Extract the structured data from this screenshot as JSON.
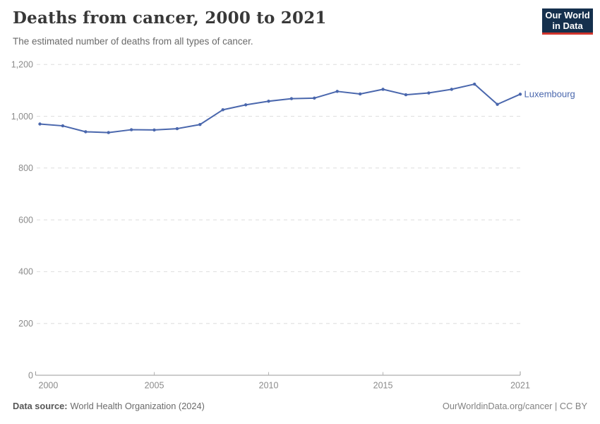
{
  "header": {
    "title": "Deaths from cancer, 2000 to 2021",
    "subtitle": "The estimated number of deaths from all types of cancer.",
    "logo": {
      "line1": "Our World",
      "line2": "in Data",
      "bg_color": "#15304d",
      "accent_color": "#d0342c"
    }
  },
  "chart_data": {
    "type": "line",
    "title": "Deaths from cancer, 2000 to 2021",
    "subtitle": "The estimated number of deaths from all types of cancer.",
    "x": [
      2000,
      2001,
      2002,
      2003,
      2004,
      2005,
      2006,
      2007,
      2008,
      2009,
      2010,
      2011,
      2012,
      2013,
      2014,
      2015,
      2016,
      2017,
      2018,
      2019,
      2020,
      2021
    ],
    "series": [
      {
        "name": "Luxembourg",
        "color": "#4a67ad",
        "values": [
          970,
          963,
          940,
          937,
          948,
          947,
          952,
          968,
          1025,
          1044,
          1058,
          1068,
          1070,
          1096,
          1086,
          1104,
          1083,
          1090,
          1104,
          1124,
          1046,
          1085
        ]
      }
    ],
    "xlabel": "",
    "ylabel": "",
    "ylim": [
      0,
      1200
    ],
    "yticks": [
      0,
      200,
      400,
      600,
      800,
      1000,
      1200
    ],
    "ytick_labels": [
      "0",
      "200",
      "400",
      "600",
      "800",
      "1,000",
      "1,200"
    ],
    "xtick_labels": [
      2000,
      2005,
      2010,
      2015,
      2021
    ],
    "grid": "horizontal-dashed",
    "legend_position": "end-of-line-label",
    "grid_color": "#dedede",
    "axis_color": "#9a9a9a",
    "tick_label_color": "#8b8b8b"
  },
  "footer": {
    "source_label": "Data source:",
    "source_value": "World Health Organization (2024)",
    "credit": "OurWorldinData.org/cancer | CC BY"
  }
}
